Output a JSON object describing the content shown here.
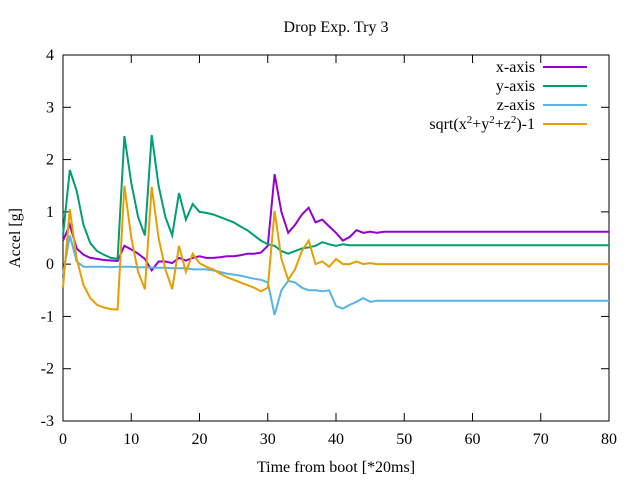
{
  "chart_data": {
    "type": "line",
    "title": "Drop Exp. Try 3",
    "xlabel": "Time from boot [*20ms]",
    "ylabel": "Accel [g]",
    "xlim": [
      0,
      80
    ],
    "ylim": [
      -3,
      4
    ],
    "xticks": [
      0,
      10,
      20,
      30,
      40,
      50,
      60,
      70,
      80
    ],
    "yticks": [
      -3,
      -2,
      -1,
      0,
      1,
      2,
      3,
      4
    ],
    "grid": false,
    "legend_position": "top-right",
    "series": [
      {
        "name": "x-axis",
        "color": "#9400d3",
        "x": [
          0,
          1,
          2,
          3,
          4,
          5,
          6,
          7,
          8,
          9,
          10,
          11,
          12,
          13,
          14,
          15,
          16,
          17,
          18,
          19,
          20,
          21,
          22,
          23,
          24,
          25,
          26,
          27,
          28,
          29,
          30,
          31,
          32,
          33,
          34,
          35,
          36,
          37,
          38,
          39,
          40,
          41,
          42,
          43,
          44,
          45,
          46,
          47,
          80
        ],
        "y": [
          0.45,
          0.75,
          0.3,
          0.18,
          0.12,
          0.1,
          0.08,
          0.07,
          0.06,
          0.35,
          0.28,
          0.2,
          0.1,
          -0.12,
          0.05,
          0.05,
          0.02,
          0.12,
          0.07,
          0.12,
          0.15,
          0.12,
          0.12,
          0.13,
          0.15,
          0.15,
          0.17,
          0.2,
          0.2,
          0.22,
          0.35,
          1.72,
          1.0,
          0.6,
          0.75,
          0.95,
          1.08,
          0.8,
          0.85,
          0.72,
          0.6,
          0.45,
          0.52,
          0.65,
          0.6,
          0.62,
          0.6,
          0.62,
          0.62
        ]
      },
      {
        "name": "y-axis",
        "color": "#009e73",
        "x": [
          0,
          1,
          2,
          3,
          4,
          5,
          6,
          7,
          8,
          9,
          10,
          11,
          12,
          13,
          14,
          15,
          16,
          17,
          18,
          19,
          20,
          21,
          22,
          23,
          24,
          25,
          26,
          27,
          28,
          29,
          30,
          31,
          32,
          33,
          34,
          35,
          36,
          37,
          38,
          39,
          40,
          41,
          42,
          80
        ],
        "y": [
          0.55,
          1.8,
          1.4,
          0.75,
          0.4,
          0.25,
          0.18,
          0.12,
          0.1,
          2.45,
          1.55,
          0.9,
          0.55,
          2.47,
          1.5,
          0.9,
          0.55,
          1.36,
          0.85,
          1.15,
          1.0,
          0.98,
          0.95,
          0.9,
          0.85,
          0.8,
          0.72,
          0.65,
          0.55,
          0.45,
          0.38,
          0.35,
          0.25,
          0.2,
          0.25,
          0.3,
          0.32,
          0.35,
          0.42,
          0.38,
          0.35,
          0.38,
          0.36,
          0.36
        ]
      },
      {
        "name": "z-axis",
        "color": "#56b4e9",
        "x": [
          0,
          1,
          2,
          3,
          4,
          5,
          6,
          7,
          8,
          9,
          10,
          11,
          12,
          13,
          14,
          15,
          16,
          17,
          18,
          19,
          20,
          21,
          22,
          23,
          24,
          25,
          26,
          27,
          28,
          29,
          30,
          31,
          32,
          33,
          34,
          35,
          36,
          37,
          38,
          39,
          40,
          41,
          42,
          43,
          44,
          45,
          46,
          47,
          80
        ],
        "y": [
          -0.2,
          0.55,
          0.05,
          -0.05,
          -0.05,
          -0.05,
          -0.05,
          -0.06,
          -0.05,
          -0.05,
          -0.05,
          -0.06,
          -0.06,
          -0.07,
          -0.07,
          -0.07,
          -0.08,
          -0.08,
          -0.08,
          -0.1,
          -0.1,
          -0.1,
          -0.12,
          -0.15,
          -0.18,
          -0.2,
          -0.22,
          -0.25,
          -0.28,
          -0.3,
          -0.35,
          -0.97,
          -0.5,
          -0.32,
          -0.35,
          -0.45,
          -0.5,
          -0.5,
          -0.52,
          -0.5,
          -0.8,
          -0.85,
          -0.78,
          -0.72,
          -0.65,
          -0.72,
          -0.7,
          -0.7,
          -0.7
        ]
      },
      {
        "name": "sqrt(x2+y2+z2)-1",
        "color": "#e69f00",
        "x": [
          0,
          1,
          2,
          3,
          4,
          5,
          6,
          7,
          8,
          9,
          10,
          11,
          12,
          13,
          14,
          15,
          16,
          17,
          18,
          19,
          20,
          21,
          22,
          23,
          24,
          25,
          26,
          27,
          28,
          29,
          30,
          31,
          32,
          33,
          34,
          35,
          36,
          37,
          38,
          39,
          40,
          41,
          42,
          43,
          44,
          45,
          46,
          47,
          80
        ],
        "y": [
          -0.45,
          1.05,
          0.1,
          -0.4,
          -0.65,
          -0.78,
          -0.83,
          -0.86,
          -0.87,
          1.5,
          0.5,
          -0.15,
          -0.48,
          1.48,
          0.5,
          -0.1,
          -0.48,
          0.35,
          -0.15,
          0.2,
          0.02,
          -0.05,
          -0.1,
          -0.18,
          -0.25,
          -0.3,
          -0.35,
          -0.4,
          -0.45,
          -0.52,
          -0.45,
          1.02,
          0.1,
          -0.3,
          -0.1,
          0.25,
          0.45,
          0.0,
          0.05,
          -0.05,
          0.1,
          0.0,
          0.0,
          0.05,
          0.0,
          0.02,
          0.0,
          0.0,
          0.0
        ]
      }
    ]
  }
}
